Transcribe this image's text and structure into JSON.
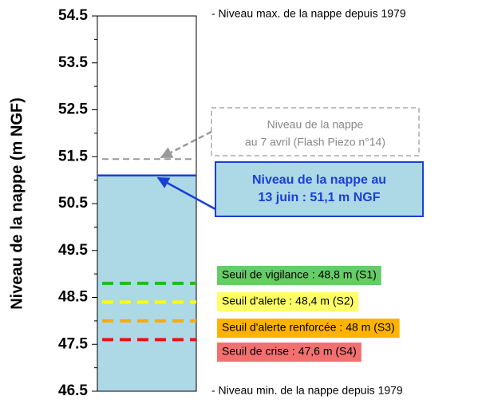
{
  "chart_data": {
    "type": "level",
    "ylabel": "Niveau de la nappe (m NGF)",
    "ylim": [
      46.5,
      54.5
    ],
    "yticks": [
      46.5,
      47.5,
      48.5,
      49.5,
      50.5,
      51.5,
      52.5,
      53.5,
      54.5
    ],
    "minor_yticks": [
      47,
      48,
      49,
      50,
      51,
      52,
      53,
      54
    ],
    "max_label": "- Niveau max. de la nappe depuis 1979",
    "min_label": "- Niveau min. de la nappe depuis 1979",
    "fill_color": "#add8e6",
    "current": {
      "value": 51.1,
      "color": "#1a3fd6",
      "label_lines": [
        "Niveau de la nappe au",
        "13 juin : 51,1 m NGF"
      ]
    },
    "previous": {
      "value": 51.45,
      "color": "#999999",
      "label_lines": [
        "Niveau de la nappe",
        "au 7 avril (Flash Piezo n°14)"
      ]
    },
    "thresholds": [
      {
        "name": "Seuil de vigilance : 48,8 m (S1)",
        "value": 48.8,
        "color": "#22bb22",
        "box_color": "#66cc66"
      },
      {
        "name": "Seuil d'alerte : 48,4 m (S2)",
        "value": 48.4,
        "color": "#ffff00",
        "box_color": "#ffff66"
      },
      {
        "name": "Seuil d'alerte renforcée : 48 m (S3)",
        "value": 48,
        "color": "#ffaa00",
        "box_color": "#ffb300"
      },
      {
        "name": "Seuil de crise : 47,6 m (S4)",
        "value": 47.6,
        "color": "#ee1111",
        "box_color": "#f27070"
      }
    ]
  }
}
